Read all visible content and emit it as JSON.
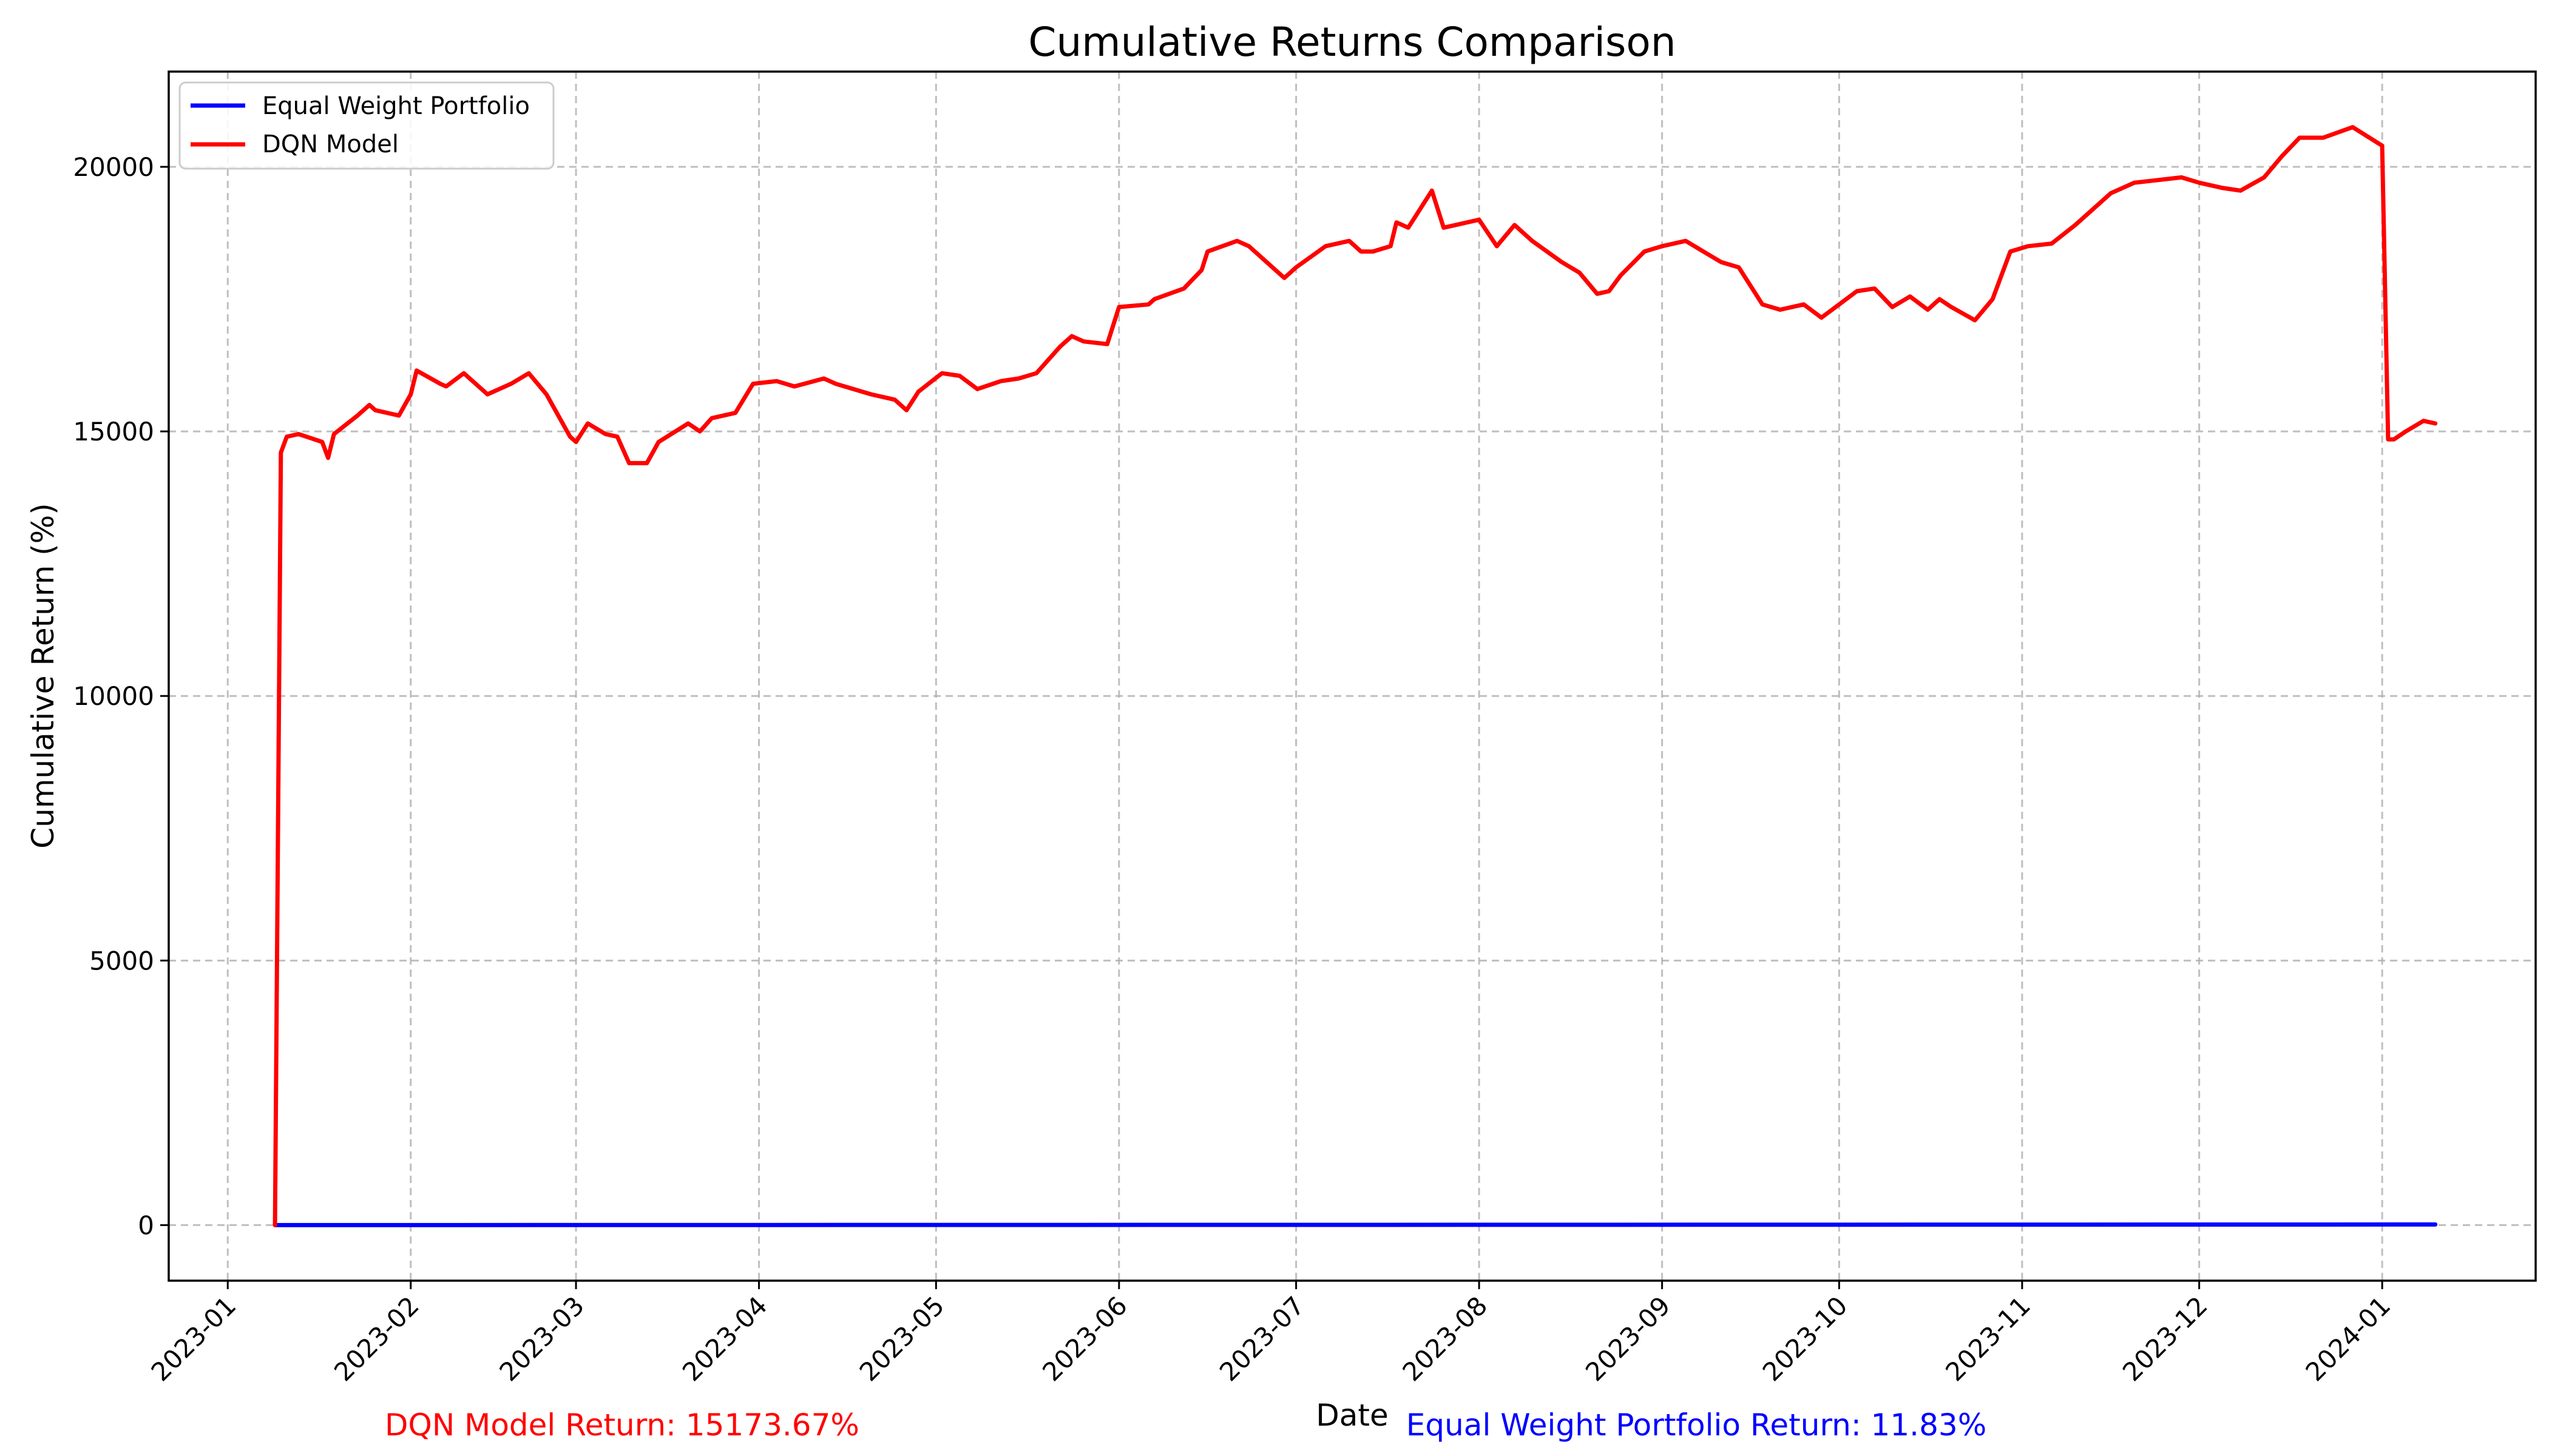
{
  "chart_data": {
    "type": "line",
    "title": "Cumulative Returns Comparison",
    "xlabel": "Date",
    "ylabel": "Cumulative Return (%)",
    "x_range": [
      "2022-12-22",
      "2024-01-27"
    ],
    "ylim": [
      -1050,
      21800
    ],
    "grid": true,
    "legend_position": "top-left",
    "x_ticks": [
      "2023-01",
      "2023-02",
      "2023-03",
      "2023-04",
      "2023-05",
      "2023-06",
      "2023-07",
      "2023-08",
      "2023-09",
      "2023-10",
      "2023-11",
      "2023-12",
      "2024-01"
    ],
    "y_ticks": [
      0,
      5000,
      10000,
      15000,
      20000
    ],
    "series": [
      {
        "name": "Equal Weight Portfolio",
        "color": "#0000ff",
        "x": [
          "2023-01-09",
          "2023-04-01",
          "2023-07-01",
          "2023-10-01",
          "2024-01-10"
        ],
        "values": [
          0,
          2,
          5,
          8,
          11.83
        ]
      },
      {
        "name": "DQN Model",
        "color": "#ff0000",
        "x": [
          "2023-01-09",
          "2023-01-10",
          "2023-01-11",
          "2023-01-13",
          "2023-01-17",
          "2023-01-18",
          "2023-01-19",
          "2023-01-23",
          "2023-01-25",
          "2023-01-26",
          "2023-01-30",
          "2023-02-01",
          "2023-02-02",
          "2023-02-06",
          "2023-02-07",
          "2023-02-10",
          "2023-02-14",
          "2023-02-18",
          "2023-02-21",
          "2023-02-24",
          "2023-02-28",
          "2023-03-01",
          "2023-03-03",
          "2023-03-06",
          "2023-03-08",
          "2023-03-10",
          "2023-03-13",
          "2023-03-15",
          "2023-03-20",
          "2023-03-22",
          "2023-03-24",
          "2023-03-28",
          "2023-03-31",
          "2023-04-04",
          "2023-04-07",
          "2023-04-12",
          "2023-04-14",
          "2023-04-20",
          "2023-04-24",
          "2023-04-26",
          "2023-04-28",
          "2023-05-02",
          "2023-05-05",
          "2023-05-08",
          "2023-05-12",
          "2023-05-15",
          "2023-05-18",
          "2023-05-22",
          "2023-05-24",
          "2023-05-26",
          "2023-05-30",
          "2023-06-01",
          "2023-06-06",
          "2023-06-07",
          "2023-06-12",
          "2023-06-15",
          "2023-06-16",
          "2023-06-21",
          "2023-06-23",
          "2023-06-26",
          "2023-06-29",
          "2023-07-01",
          "2023-07-06",
          "2023-07-10",
          "2023-07-12",
          "2023-07-14",
          "2023-07-17",
          "2023-07-18",
          "2023-07-20",
          "2023-07-24",
          "2023-07-26",
          "2023-07-28",
          "2023-08-01",
          "2023-08-04",
          "2023-08-07",
          "2023-08-10",
          "2023-08-15",
          "2023-08-18",
          "2023-08-21",
          "2023-08-23",
          "2023-08-25",
          "2023-08-29",
          "2023-09-01",
          "2023-09-05",
          "2023-09-08",
          "2023-09-11",
          "2023-09-14",
          "2023-09-18",
          "2023-09-21",
          "2023-09-25",
          "2023-09-28",
          "2023-10-01",
          "2023-10-04",
          "2023-10-07",
          "2023-10-10",
          "2023-10-13",
          "2023-10-16",
          "2023-10-18",
          "2023-10-20",
          "2023-10-24",
          "2023-10-27",
          "2023-10-30",
          "2023-11-02",
          "2023-11-06",
          "2023-11-10",
          "2023-11-14",
          "2023-11-16",
          "2023-11-20",
          "2023-11-24",
          "2023-11-28",
          "2023-12-01",
          "2023-12-05",
          "2023-12-08",
          "2023-12-12",
          "2023-12-15",
          "2023-12-18",
          "2023-12-22",
          "2023-12-27",
          "2024-01-01",
          "2024-01-02",
          "2024-01-03",
          "2024-01-05",
          "2024-01-08",
          "2024-01-10"
        ],
        "values": [
          0,
          14600,
          14900,
          14950,
          14800,
          14500,
          14950,
          15300,
          15500,
          15400,
          15300,
          15700,
          16150,
          15900,
          15850,
          16100,
          15700,
          15900,
          16100,
          15700,
          14900,
          14800,
          15150,
          14950,
          14900,
          14400,
          14400,
          14800,
          15150,
          15000,
          15250,
          15350,
          15900,
          15950,
          15850,
          16000,
          15900,
          15700,
          15600,
          15400,
          15750,
          16100,
          16050,
          15800,
          15950,
          16000,
          16100,
          16600,
          16800,
          16700,
          16650,
          17350,
          17400,
          17500,
          17700,
          18050,
          18400,
          18600,
          18500,
          18200,
          17900,
          18100,
          18500,
          18600,
          18400,
          18400,
          18500,
          18950,
          18850,
          19550,
          18850,
          18900,
          19000,
          18500,
          18900,
          18600,
          18200,
          18000,
          17600,
          17650,
          17950,
          18400,
          18500,
          18600,
          18400,
          18200,
          18100,
          17400,
          17300,
          17400,
          17150,
          17400,
          17650,
          17700,
          17350,
          17550,
          17300,
          17500,
          17350,
          17100,
          17500,
          18400,
          18500,
          18550,
          18900,
          19300,
          19500,
          19700,
          19750,
          19800,
          19700,
          19600,
          19550,
          19800,
          20200,
          20550,
          20550,
          20750,
          20400,
          14850,
          14850,
          15000,
          15200,
          15150
        ]
      }
    ],
    "annotations": [
      {
        "text": "DQN Model Return: 15173.67%",
        "color": "#ff0000"
      },
      {
        "text": "Equal Weight Portfolio Return: 11.83%",
        "color": "#0000ff"
      }
    ]
  }
}
